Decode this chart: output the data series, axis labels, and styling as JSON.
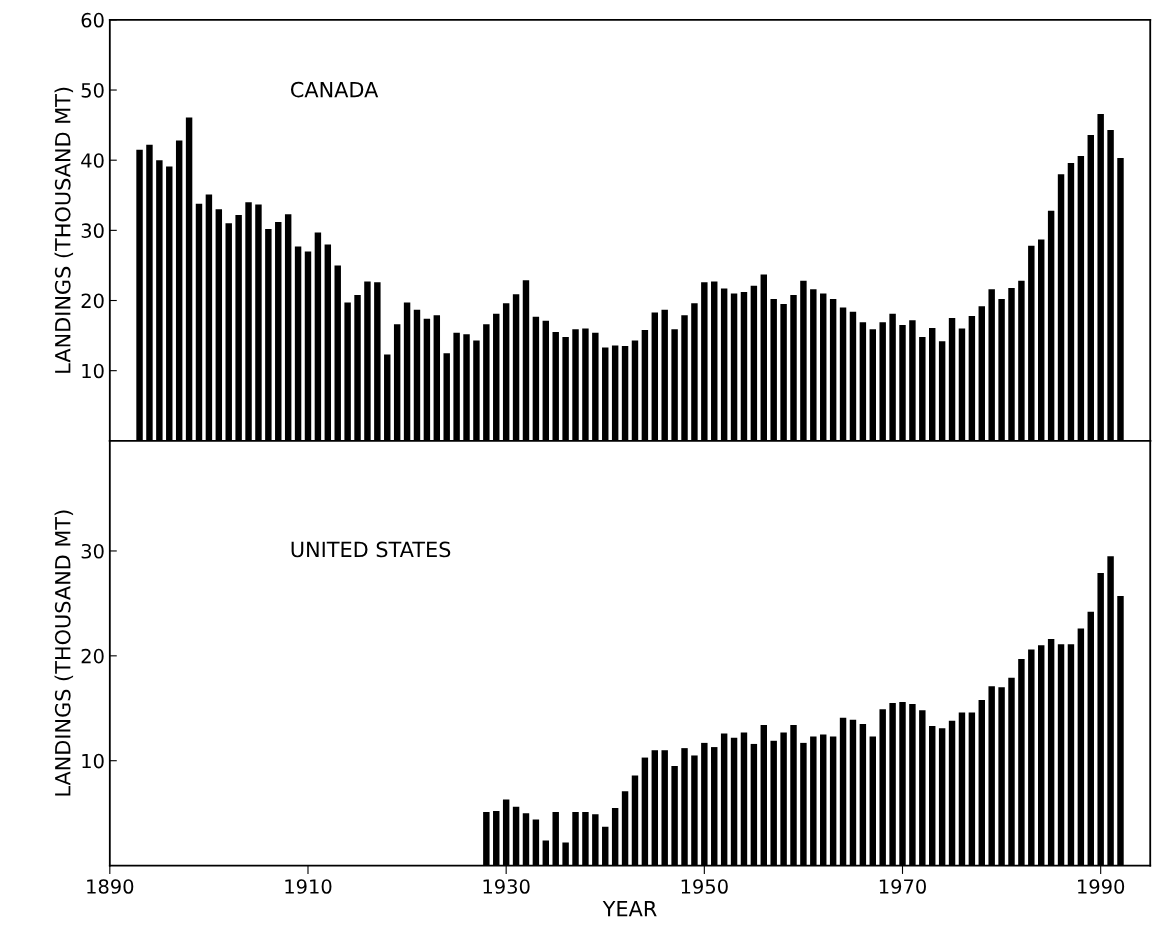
{
  "chart_data": [
    {
      "type": "bar",
      "ylabel": "LANDINGS (THOUSAND MT)",
      "annotations": [
        "CANADA"
      ],
      "xlim": [
        1890,
        1995
      ],
      "ylim": [
        0,
        60
      ],
      "yticks": [
        {
          "value": 0,
          "label": null
        },
        10,
        20,
        30,
        40,
        50,
        60
      ],
      "tick_labels": "y",
      "grid": false,
      "x": [
        1893,
        1894,
        1895,
        1896,
        1897,
        1898,
        1899,
        1900,
        1901,
        1902,
        1903,
        1904,
        1905,
        1906,
        1907,
        1908,
        1909,
        1910,
        1911,
        1912,
        1913,
        1914,
        1915,
        1916,
        1917,
        1918,
        1919,
        1920,
        1921,
        1922,
        1923,
        1924,
        1925,
        1926,
        1927,
        1928,
        1929,
        1930,
        1931,
        1932,
        1933,
        1934,
        1935,
        1936,
        1937,
        1938,
        1939,
        1940,
        1941,
        1942,
        1943,
        1944,
        1945,
        1946,
        1947,
        1948,
        1949,
        1950,
        1951,
        1952,
        1953,
        1954,
        1955,
        1956,
        1957,
        1958,
        1959,
        1960,
        1961,
        1962,
        1963,
        1964,
        1965,
        1966,
        1967,
        1968,
        1969,
        1970,
        1971,
        1972,
        1973,
        1974,
        1975,
        1976,
        1977,
        1978,
        1979,
        1980,
        1981,
        1982,
        1983,
        1984,
        1985,
        1986,
        1987,
        1988,
        1989,
        1990,
        1991,
        1992
      ],
      "series": [
        {
          "color": "#000000",
          "values": [
            41.5,
            42.2,
            40.0,
            39.1,
            42.8,
            46.1,
            33.8,
            35.1,
            33.0,
            31.0,
            32.2,
            34.0,
            33.7,
            30.2,
            31.2,
            32.3,
            27.7,
            27.0,
            29.7,
            28.0,
            25.0,
            19.7,
            20.8,
            22.7,
            22.6,
            12.3,
            16.6,
            19.7,
            18.7,
            17.4,
            17.9,
            12.5,
            15.4,
            15.2,
            14.3,
            16.6,
            18.1,
            19.6,
            20.9,
            22.9,
            17.7,
            17.1,
            15.5,
            14.8,
            15.9,
            16.0,
            15.4,
            13.3,
            13.6,
            13.5,
            14.3,
            15.8,
            18.3,
            18.7,
            15.9,
            17.9,
            19.6,
            22.6,
            22.7,
            21.7,
            21.0,
            21.2,
            22.1,
            23.7,
            20.2,
            19.5,
            20.8,
            22.8,
            21.6,
            21.0,
            20.2,
            19.0,
            18.4,
            16.9,
            15.9,
            16.9,
            18.1,
            16.5,
            17.2,
            14.8,
            16.1,
            14.2,
            17.5,
            16.0,
            17.8,
            19.2,
            21.6,
            20.2,
            21.8,
            22.8,
            27.8,
            28.7,
            32.8,
            38.0,
            39.6,
            40.6,
            43.6,
            46.6,
            44.3,
            40.3
          ]
        }
      ]
    },
    {
      "type": "bar",
      "xlabel": "YEAR",
      "ylabel": "LANDINGS (THOUSAND MT)",
      "annotations": [
        "UNITED STATES"
      ],
      "xlim": [
        1890,
        1995
      ],
      "xticks": [
        1890,
        1910,
        1930,
        1950,
        1970,
        1990
      ],
      "ylim": [
        0,
        40.5
      ],
      "yticks": [
        10,
        20,
        30
      ],
      "grid": false,
      "x": [
        1928,
        1929,
        1930,
        1931,
        1932,
        1933,
        1934,
        1935,
        1936,
        1937,
        1938,
        1939,
        1940,
        1941,
        1942,
        1943,
        1944,
        1945,
        1946,
        1947,
        1948,
        1949,
        1950,
        1951,
        1952,
        1953,
        1954,
        1955,
        1956,
        1957,
        1958,
        1959,
        1960,
        1961,
        1962,
        1963,
        1964,
        1965,
        1966,
        1967,
        1968,
        1969,
        1970,
        1971,
        1972,
        1973,
        1974,
        1975,
        1976,
        1977,
        1978,
        1979,
        1980,
        1981,
        1982,
        1983,
        1984,
        1985,
        1986,
        1987,
        1988,
        1989,
        1990,
        1991,
        1992
      ],
      "series": [
        {
          "color": "#000000",
          "values": [
            5.1,
            5.2,
            6.3,
            5.6,
            5.0,
            4.4,
            2.4,
            5.1,
            2.2,
            5.1,
            5.1,
            4.9,
            3.7,
            5.5,
            7.1,
            8.6,
            10.3,
            11.0,
            11.0,
            9.5,
            11.2,
            10.5,
            11.7,
            11.3,
            12.6,
            12.2,
            12.7,
            11.6,
            13.4,
            11.9,
            12.7,
            13.4,
            11.7,
            12.3,
            12.5,
            12.3,
            14.1,
            13.9,
            13.5,
            12.3,
            14.9,
            15.5,
            15.6,
            15.4,
            14.8,
            13.3,
            13.1,
            13.8,
            14.6,
            14.6,
            15.8,
            17.1,
            17.0,
            17.9,
            19.7,
            20.6,
            21.0,
            21.6,
            21.1,
            21.1,
            22.6,
            24.2,
            27.9,
            29.5,
            25.7
          ]
        }
      ]
    }
  ]
}
